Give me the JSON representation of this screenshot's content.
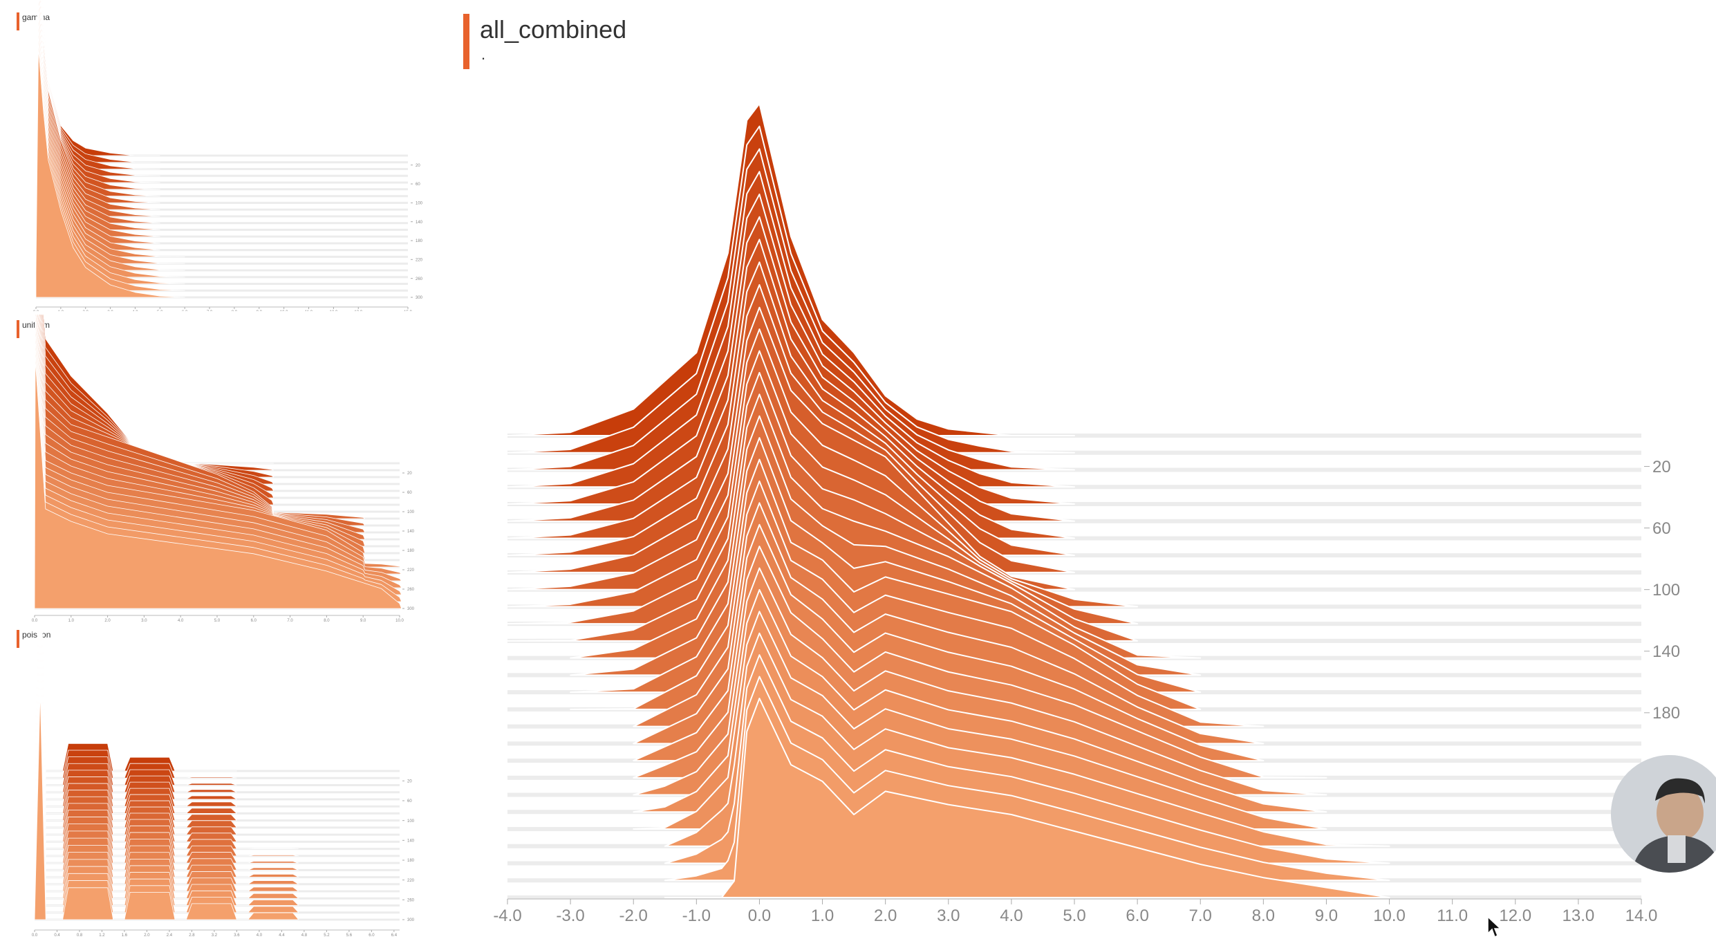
{
  "colors": {
    "accent": "#e8622c",
    "early": "#c73d0a",
    "late": "#f4a06c",
    "outline": "#ffffff"
  },
  "chart_data": [
    {
      "id": "gamma",
      "type": "area",
      "title": "gamma",
      "x_range": [
        0,
        15
      ],
      "x_ticks": [
        0.0,
        1.0,
        2.0,
        3.0,
        4.0,
        5.0,
        6.0,
        7.0,
        8.0,
        9.0,
        10.0,
        11.0,
        12.0,
        13.0,
        15.0
      ],
      "steps": [
        0,
        300
      ],
      "y_ticks": [
        20,
        60,
        100,
        140,
        180,
        220,
        260,
        300
      ],
      "series": [
        {
          "step": 0,
          "x": [
            0.0,
            0.1,
            0.3,
            0.5,
            1.0,
            1.5,
            2.0,
            3.0,
            4.0
          ],
          "y": [
            0.05,
            1.0,
            0.55,
            0.3,
            0.12,
            0.06,
            0.03,
            0.01,
            0.0
          ]
        },
        {
          "step": 100,
          "x": [
            0.0,
            0.1,
            0.3,
            0.5,
            1.0,
            1.5,
            2.0,
            3.0,
            4.0,
            5.0
          ],
          "y": [
            0.1,
            1.0,
            0.65,
            0.45,
            0.25,
            0.12,
            0.06,
            0.02,
            0.005,
            0.0
          ]
        },
        {
          "step": 200,
          "x": [
            0.0,
            0.1,
            0.3,
            0.5,
            1.0,
            1.5,
            2.0,
            3.0,
            4.0,
            5.0
          ],
          "y": [
            0.1,
            1.0,
            0.7,
            0.5,
            0.3,
            0.17,
            0.09,
            0.03,
            0.01,
            0.0
          ]
        },
        {
          "step": 300,
          "x": [
            0.0,
            0.1,
            0.3,
            0.5,
            1.0,
            1.5,
            2.0,
            3.0,
            4.0,
            5.0,
            6.0
          ],
          "y": [
            0.1,
            1.0,
            0.75,
            0.55,
            0.35,
            0.2,
            0.12,
            0.05,
            0.02,
            0.005,
            0.0
          ]
        }
      ]
    },
    {
      "id": "uniform",
      "type": "area",
      "title": "uniform",
      "x_range": [
        0,
        10
      ],
      "x_ticks": [
        0.0,
        1.0,
        2.0,
        3.0,
        4.0,
        5.0,
        6.0,
        7.0,
        8.0,
        9.0,
        10.0
      ],
      "steps": [
        0,
        300
      ],
      "y_ticks": [
        20,
        60,
        100,
        140,
        180,
        220,
        260,
        300
      ],
      "series": [
        {
          "step": 0,
          "x": [
            0.0,
            0.02,
            0.3,
            1.0,
            2.0,
            3.0,
            3.05
          ],
          "y": [
            0.0,
            1.0,
            0.5,
            0.35,
            0.2,
            0.02,
            0.0
          ]
        },
        {
          "step": 100,
          "x": [
            0.0,
            0.02,
            0.3,
            1.0,
            2.0,
            3.0,
            4.0,
            5.0,
            6.0,
            6.5,
            6.55
          ],
          "y": [
            0.0,
            1.0,
            0.45,
            0.35,
            0.3,
            0.25,
            0.2,
            0.15,
            0.08,
            0.02,
            0.0
          ]
        },
        {
          "step": 200,
          "x": [
            0.0,
            0.02,
            0.3,
            1.0,
            2.0,
            4.0,
            6.0,
            8.0,
            9.0,
            9.05
          ],
          "y": [
            0.0,
            1.0,
            0.4,
            0.35,
            0.3,
            0.25,
            0.2,
            0.12,
            0.03,
            0.0
          ]
        },
        {
          "step": 300,
          "x": [
            0.0,
            0.02,
            0.3,
            1.0,
            2.0,
            4.0,
            6.0,
            8.0,
            9.5,
            10.0,
            10.05
          ],
          "y": [
            0.0,
            1.0,
            0.4,
            0.35,
            0.3,
            0.26,
            0.22,
            0.15,
            0.08,
            0.02,
            0.0
          ]
        }
      ]
    },
    {
      "id": "poisson",
      "type": "area",
      "title": "poisson",
      "x_range": [
        0,
        6.5
      ],
      "x_ticks": [
        0.0,
        0.4,
        0.8,
        1.2,
        1.6,
        2.0,
        2.4,
        2.8,
        3.2,
        3.6,
        4.0,
        4.4,
        4.8,
        5.2,
        5.6,
        6.0,
        6.4
      ],
      "steps": [
        0,
        300
      ],
      "y_ticks": [
        20,
        60,
        100,
        140,
        180,
        220,
        260,
        300
      ],
      "series": [
        {
          "step": 0,
          "x": [
            0.0,
            0.1,
            0.2,
            0.5,
            0.6,
            1.3,
            1.4,
            1.6,
            1.7,
            2.4,
            2.5
          ],
          "y": [
            0.0,
            1.0,
            0.0,
            0.0,
            0.12,
            0.12,
            0.0,
            0.0,
            0.06,
            0.06,
            0.0
          ]
        },
        {
          "step": 150,
          "x": [
            0.0,
            0.1,
            0.2,
            0.5,
            0.6,
            1.3,
            1.4,
            1.6,
            1.7,
            2.4,
            2.5,
            2.7,
            2.8,
            3.5,
            3.6
          ],
          "y": [
            0.0,
            1.0,
            0.0,
            0.0,
            0.14,
            0.14,
            0.0,
            0.0,
            0.1,
            0.1,
            0.0,
            0.0,
            0.04,
            0.04,
            0.0
          ]
        },
        {
          "step": 300,
          "x": [
            0.0,
            0.1,
            0.2,
            0.5,
            0.6,
            1.3,
            1.4,
            1.6,
            1.7,
            2.4,
            2.5,
            2.7,
            2.8,
            3.5,
            3.6,
            3.8,
            3.9,
            4.6,
            4.7
          ],
          "y": [
            0.0,
            1.0,
            0.0,
            0.0,
            0.14,
            0.14,
            0.0,
            0.0,
            0.12,
            0.12,
            0.0,
            0.0,
            0.07,
            0.07,
            0.0,
            0.0,
            0.03,
            0.03,
            0.0
          ]
        }
      ]
    },
    {
      "id": "all_combined",
      "type": "area",
      "title": "all_combined",
      "subtitle": ".",
      "x_range": [
        -4,
        14
      ],
      "x_ticks": [
        "-4.0",
        "-3.0",
        "-2.0",
        "-1.0",
        "0.0",
        "1.0",
        "2.0",
        "3.0",
        "4.0",
        "5.0",
        "6.0",
        "7.0",
        "8.0",
        "9.0",
        "10.0",
        "11.0",
        "12.0",
        "13.0",
        "14.0"
      ],
      "steps": [
        0,
        300
      ],
      "y_ticks": [
        20,
        60,
        100,
        140,
        180,
        220,
        260
      ],
      "series": [
        {
          "step": 0,
          "x": [
            -4.0,
            -3.0,
            -2.0,
            -1.0,
            -0.5,
            -0.2,
            0.0,
            0.5,
            1.0,
            1.5,
            2.0,
            2.5,
            3.0,
            4.0
          ],
          "y": [
            0.0,
            0.01,
            0.08,
            0.25,
            0.55,
            0.95,
            1.0,
            0.6,
            0.35,
            0.25,
            0.12,
            0.05,
            0.02,
            0.0
          ]
        },
        {
          "step": 100,
          "x": [
            -4.0,
            -3.0,
            -2.0,
            -1.0,
            -0.5,
            -0.2,
            0.0,
            0.5,
            1.0,
            1.5,
            2.0,
            2.5,
            3.0,
            3.5,
            4.0,
            5.0
          ],
          "y": [
            0.0,
            0.01,
            0.05,
            0.15,
            0.35,
            0.75,
            0.85,
            0.6,
            0.5,
            0.45,
            0.4,
            0.3,
            0.2,
            0.1,
            0.04,
            0.0
          ]
        },
        {
          "step": 140,
          "x": [
            -3.0,
            -2.0,
            -1.0,
            -0.5,
            -0.2,
            0.0,
            0.5,
            1.0,
            1.5,
            2.0,
            3.0,
            4.0,
            5.0,
            6.0
          ],
          "y": [
            0.0,
            0.03,
            0.12,
            0.3,
            0.7,
            0.8,
            0.55,
            0.45,
            0.42,
            0.38,
            0.3,
            0.2,
            0.08,
            0.0
          ]
        },
        {
          "step": 180,
          "x": [
            -2.0,
            -1.0,
            -0.5,
            -0.2,
            0.0,
            0.5,
            1.0,
            1.5,
            2.0,
            3.0,
            4.0,
            5.0,
            6.0,
            7.0
          ],
          "y": [
            0.0,
            0.1,
            0.25,
            0.65,
            0.75,
            0.5,
            0.45,
            0.35,
            0.4,
            0.35,
            0.3,
            0.2,
            0.08,
            0.0
          ]
        },
        {
          "step": 220,
          "x": [
            -2.0,
            -1.0,
            -0.5,
            -0.2,
            0.0,
            0.5,
            1.0,
            1.5,
            2.0,
            3.0,
            4.0,
            5.0,
            6.0,
            7.0,
            8.0
          ],
          "y": [
            0.0,
            0.08,
            0.2,
            0.6,
            0.7,
            0.5,
            0.42,
            0.32,
            0.38,
            0.32,
            0.28,
            0.22,
            0.14,
            0.06,
            0.0
          ]
        },
        {
          "step": 260,
          "x": [
            -1.5,
            -1.0,
            -0.5,
            -0.2,
            0.0,
            0.5,
            1.0,
            1.5,
            2.0,
            3.0,
            4.0,
            5.0,
            6.0,
            7.0,
            8.0,
            9.0
          ],
          "y": [
            0.0,
            0.05,
            0.15,
            0.55,
            0.65,
            0.45,
            0.4,
            0.3,
            0.36,
            0.3,
            0.27,
            0.22,
            0.16,
            0.1,
            0.04,
            0.0
          ]
        },
        {
          "step": 300,
          "x": [
            -0.6,
            -0.4,
            -0.2,
            0.0,
            0.5,
            1.0,
            1.5,
            2.0,
            3.0,
            4.0,
            5.0,
            6.0,
            7.0,
            8.0,
            9.0,
            10.0
          ],
          "y": [
            0.0,
            0.05,
            0.5,
            0.6,
            0.4,
            0.35,
            0.25,
            0.32,
            0.28,
            0.25,
            0.2,
            0.15,
            0.1,
            0.06,
            0.03,
            0.0
          ]
        }
      ]
    }
  ]
}
